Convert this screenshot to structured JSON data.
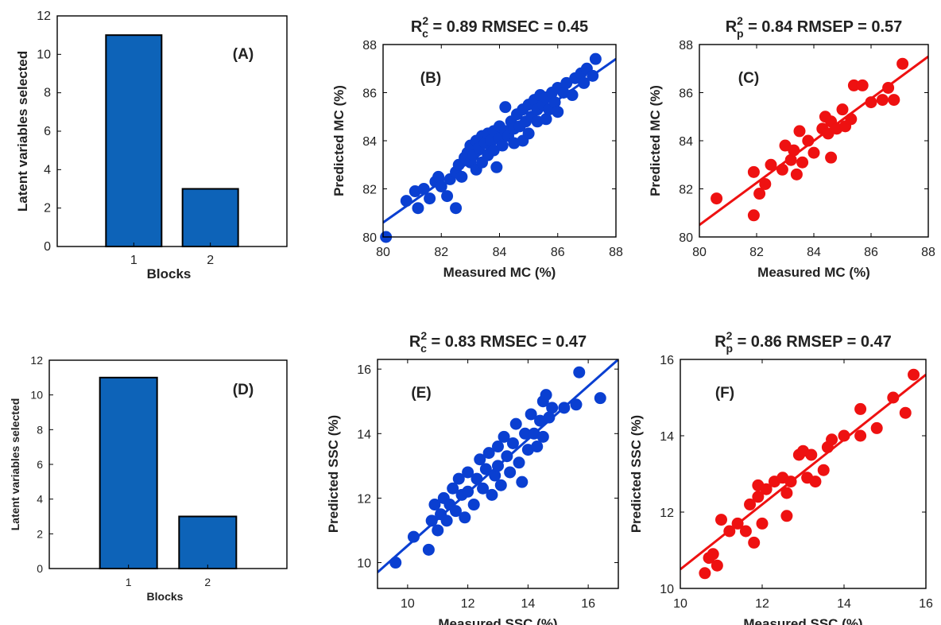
{
  "colors": {
    "blue": "#0a3fd1",
    "red": "#ee1111",
    "bar": "#0d63b8"
  },
  "chart_data": [
    {
      "panel": "A",
      "type": "bar",
      "letter": "(A)",
      "categories": [
        "1",
        "2"
      ],
      "values": [
        11,
        3
      ],
      "xlabel": "Blocks",
      "ylabel": "Latent variables selected",
      "ylim": [
        0,
        12
      ],
      "yticks": [
        "0",
        "2",
        "4",
        "6",
        "8",
        "10",
        "12"
      ]
    },
    {
      "panel": "B",
      "type": "scatter",
      "letter": "(B)",
      "color": "blue",
      "title": {
        "prefix": "R",
        "sup": "2",
        "sub": "c",
        "rest": " = 0.89 RMSEC = 0.45"
      },
      "xlabel": "Measured MC (%)",
      "ylabel": "Predicted MC (%)",
      "xlim": [
        80,
        88
      ],
      "ylim": [
        80,
        88
      ],
      "xticks": [
        "80",
        "82",
        "84",
        "86",
        "88"
      ],
      "yticks": [
        "80",
        "82",
        "84",
        "86",
        "88"
      ],
      "fit": {
        "x": [
          80,
          88
        ],
        "y": [
          80.6,
          87.4
        ]
      },
      "points": [
        [
          80.1,
          80
        ],
        [
          80.8,
          81.5
        ],
        [
          81.1,
          81.9
        ],
        [
          81.2,
          81.2
        ],
        [
          81.4,
          82
        ],
        [
          81.6,
          81.6
        ],
        [
          81.8,
          82.3
        ],
        [
          81.9,
          82.5
        ],
        [
          82.0,
          82.1
        ],
        [
          82.2,
          81.7
        ],
        [
          82.3,
          82.4
        ],
        [
          82.5,
          82.7
        ],
        [
          82.5,
          81.2
        ],
        [
          82.6,
          83
        ],
        [
          82.7,
          82.5
        ],
        [
          82.8,
          83.3
        ],
        [
          82.9,
          83.5
        ],
        [
          83,
          83.1
        ],
        [
          83,
          83.8
        ],
        [
          83.1,
          83.4
        ],
        [
          83.2,
          84
        ],
        [
          83.2,
          82.8
        ],
        [
          83.3,
          83.7
        ],
        [
          83.4,
          84.2
        ],
        [
          83.4,
          83.1
        ],
        [
          83.5,
          83.9
        ],
        [
          83.6,
          84.3
        ],
        [
          83.6,
          83.4
        ],
        [
          83.7,
          84
        ],
        [
          83.8,
          83.6
        ],
        [
          83.8,
          84.4
        ],
        [
          83.9,
          82.9
        ],
        [
          84,
          84.1
        ],
        [
          84,
          84.6
        ],
        [
          84.1,
          83.8
        ],
        [
          84.2,
          84.4
        ],
        [
          84.2,
          85.4
        ],
        [
          84.3,
          84.2
        ],
        [
          84.4,
          84.8
        ],
        [
          84.5,
          83.9
        ],
        [
          84.5,
          84.5
        ],
        [
          84.6,
          85.1
        ],
        [
          84.7,
          84.6
        ],
        [
          84.8,
          84
        ],
        [
          84.8,
          85.3
        ],
        [
          84.9,
          84.8
        ],
        [
          85,
          85.5
        ],
        [
          85,
          84.3
        ],
        [
          85.1,
          85
        ],
        [
          85.2,
          85.7
        ],
        [
          85.3,
          84.8
        ],
        [
          85.3,
          85.3
        ],
        [
          85.4,
          85.9
        ],
        [
          85.5,
          85.5
        ],
        [
          85.6,
          84.9
        ],
        [
          85.6,
          85.8
        ],
        [
          85.7,
          85.3
        ],
        [
          85.8,
          86
        ],
        [
          85.9,
          85.6
        ],
        [
          86,
          86.2
        ],
        [
          86,
          85.2
        ],
        [
          86.2,
          86
        ],
        [
          86.3,
          86.4
        ],
        [
          86.5,
          85.9
        ],
        [
          86.6,
          86.6
        ],
        [
          86.8,
          86.8
        ],
        [
          86.9,
          86.4
        ],
        [
          87.0,
          87
        ],
        [
          87.2,
          86.7
        ],
        [
          87.3,
          87.4
        ]
      ]
    },
    {
      "panel": "C",
      "type": "scatter",
      "letter": "(C)",
      "color": "red",
      "title": {
        "prefix": "R",
        "sup": "2",
        "sub": "p",
        "rest": " = 0.84 RMSEP = 0.57"
      },
      "xlabel": "Measured MC (%)",
      "ylabel": "Predicted MC (%)",
      "xlim": [
        80,
        88
      ],
      "ylim": [
        80,
        88
      ],
      "xticks": [
        "80",
        "82",
        "84",
        "86",
        "88"
      ],
      "yticks": [
        "80",
        "82",
        "84",
        "86",
        "88"
      ],
      "fit": {
        "x": [
          80,
          88
        ],
        "y": [
          80.5,
          87.5
        ]
      },
      "points": [
        [
          80.6,
          81.6
        ],
        [
          81.9,
          80.9
        ],
        [
          81.9,
          82.7
        ],
        [
          82.1,
          81.8
        ],
        [
          82.3,
          82.2
        ],
        [
          82.5,
          83
        ],
        [
          82.9,
          82.8
        ],
        [
          83,
          83.8
        ],
        [
          83.2,
          83.2
        ],
        [
          83.3,
          83.6
        ],
        [
          83.4,
          82.6
        ],
        [
          83.5,
          84.4
        ],
        [
          83.6,
          83.1
        ],
        [
          83.8,
          84
        ],
        [
          84,
          83.5
        ],
        [
          84.3,
          84.5
        ],
        [
          84.4,
          85
        ],
        [
          84.5,
          84.3
        ],
        [
          84.6,
          83.3
        ],
        [
          84.6,
          84.8
        ],
        [
          84.8,
          84.5
        ],
        [
          85,
          85.3
        ],
        [
          85.1,
          84.6
        ],
        [
          85.3,
          84.9
        ],
        [
          85.4,
          86.3
        ],
        [
          85.7,
          86.3
        ],
        [
          86,
          85.6
        ],
        [
          86.4,
          85.7
        ],
        [
          86.6,
          86.2
        ],
        [
          86.8,
          85.7
        ],
        [
          87.1,
          87.2
        ]
      ]
    },
    {
      "panel": "D",
      "type": "bar",
      "letter": "(D)",
      "categories": [
        "1",
        "2"
      ],
      "values": [
        11,
        3
      ],
      "xlabel": "Blocks",
      "ylabel": "Latent variables selected",
      "ylim": [
        0,
        12
      ],
      "yticks": [
        "0",
        "2",
        "4",
        "6",
        "8",
        "10",
        "12"
      ]
    },
    {
      "panel": "E",
      "type": "scatter",
      "letter": "(E)",
      "color": "blue",
      "title": {
        "prefix": "R",
        "sup": "2",
        "sub": "c",
        "rest": " = 0.83 RMSEC = 0.47"
      },
      "xlabel": "Measured SSC (%)",
      "ylabel": "Predicted SSC (%)",
      "xlim": [
        9,
        17
      ],
      "ylim": [
        9.2,
        16.3
      ],
      "xticks": [
        "10",
        "12",
        "14",
        "16"
      ],
      "yticks": [
        "10",
        "12",
        "14",
        "16"
      ],
      "fit": {
        "x": [
          9,
          17
        ],
        "y": [
          9.7,
          16.3
        ]
      },
      "points": [
        [
          9.6,
          10
        ],
        [
          10.2,
          10.8
        ],
        [
          10.7,
          10.4
        ],
        [
          10.8,
          11.3
        ],
        [
          10.9,
          11.8
        ],
        [
          11,
          11
        ],
        [
          11.1,
          11.5
        ],
        [
          11.2,
          12
        ],
        [
          11.3,
          11.3
        ],
        [
          11.4,
          11.8
        ],
        [
          11.5,
          12.3
        ],
        [
          11.6,
          11.6
        ],
        [
          11.7,
          12.6
        ],
        [
          11.8,
          12.1
        ],
        [
          11.9,
          11.4
        ],
        [
          12,
          12.8
        ],
        [
          12,
          12.2
        ],
        [
          12.2,
          11.8
        ],
        [
          12.3,
          12.6
        ],
        [
          12.4,
          13.2
        ],
        [
          12.5,
          12.3
        ],
        [
          12.6,
          12.9
        ],
        [
          12.7,
          13.4
        ],
        [
          12.8,
          12.1
        ],
        [
          12.9,
          12.7
        ],
        [
          13,
          13.6
        ],
        [
          13,
          13
        ],
        [
          13.1,
          12.4
        ],
        [
          13.2,
          13.9
        ],
        [
          13.3,
          13.3
        ],
        [
          13.4,
          12.8
        ],
        [
          13.5,
          13.7
        ],
        [
          13.6,
          14.3
        ],
        [
          13.7,
          13.1
        ],
        [
          13.8,
          12.5
        ],
        [
          13.9,
          14
        ],
        [
          14,
          13.5
        ],
        [
          14.1,
          14.6
        ],
        [
          14.2,
          14
        ],
        [
          14.3,
          13.6
        ],
        [
          14.4,
          14.4
        ],
        [
          14.5,
          15
        ],
        [
          14.5,
          13.9
        ],
        [
          14.6,
          15.2
        ],
        [
          14.7,
          14.5
        ],
        [
          14.8,
          14.8
        ],
        [
          15.2,
          14.8
        ],
        [
          15.6,
          14.9
        ],
        [
          15.7,
          15.9
        ],
        [
          16.4,
          15.1
        ]
      ]
    },
    {
      "panel": "F",
      "type": "scatter",
      "letter": "(F)",
      "color": "red",
      "title": {
        "prefix": "R",
        "sup": "2",
        "sub": "p",
        "rest": " = 0.86 RMSEP = 0.47"
      },
      "xlabel": "Measured SSC (%)",
      "ylabel": "Predicted SSC (%)",
      "xlim": [
        10,
        16
      ],
      "ylim": [
        10,
        16
      ],
      "xticks": [
        "10",
        "12",
        "14",
        "16"
      ],
      "yticks": [
        "10",
        "12",
        "14",
        "16"
      ],
      "fit": {
        "x": [
          10,
          16
        ],
        "y": [
          10.5,
          15.6
        ]
      },
      "points": [
        [
          10.6,
          10.4
        ],
        [
          10.7,
          10.8
        ],
        [
          10.8,
          10.9
        ],
        [
          10.9,
          10.6
        ],
        [
          11,
          11.8
        ],
        [
          11.2,
          11.5
        ],
        [
          11.4,
          11.7
        ],
        [
          11.6,
          11.5
        ],
        [
          11.7,
          12.2
        ],
        [
          11.8,
          11.2
        ],
        [
          11.9,
          12.4
        ],
        [
          11.9,
          12.7
        ],
        [
          12,
          11.7
        ],
        [
          12.1,
          12.6
        ],
        [
          12.3,
          12.8
        ],
        [
          12.5,
          12.9
        ],
        [
          12.6,
          11.9
        ],
        [
          12.6,
          12.5
        ],
        [
          12.7,
          12.8
        ],
        [
          12.9,
          13.5
        ],
        [
          13,
          13.6
        ],
        [
          13.1,
          12.9
        ],
        [
          13.2,
          13.5
        ],
        [
          13.3,
          12.8
        ],
        [
          13.5,
          13.1
        ],
        [
          13.6,
          13.7
        ],
        [
          13.7,
          13.9
        ],
        [
          14,
          14
        ],
        [
          14.4,
          14
        ],
        [
          14.4,
          14.7
        ],
        [
          14.8,
          14.2
        ],
        [
          15.2,
          15
        ],
        [
          15.5,
          14.6
        ],
        [
          15.7,
          15.6
        ]
      ]
    }
  ]
}
